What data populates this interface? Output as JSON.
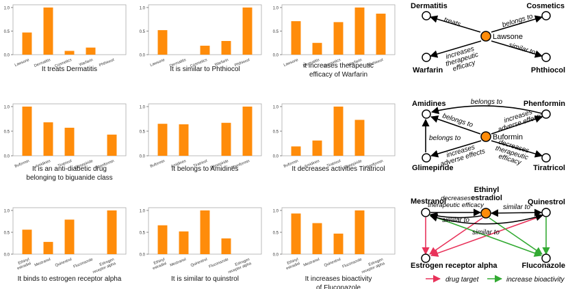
{
  "colors": {
    "bar": "#ff8c0a",
    "node_center": "#ff8c0a",
    "node": "#ffffff",
    "drug_target": "#e8325a",
    "increase_bioactivity": "#33aa33",
    "edge": "#000000",
    "axis": "#666666"
  },
  "chart_data": [
    {
      "type": "bar",
      "title": "It treats Dermatitis",
      "categories": [
        "Lawsone",
        "Dermatitis",
        "Cosmetics",
        "Warfarin",
        "Phthiocol"
      ],
      "values": [
        0.47,
        1.0,
        0.08,
        0.15,
        0.0
      ],
      "yticks": [
        "0.0",
        "0.5",
        "1.0"
      ],
      "ylim": [
        0,
        1.0
      ],
      "xlabel": "",
      "ylabel": ""
    },
    {
      "type": "bar",
      "title": "It is similar to Phthiocol",
      "categories": [
        "Lawsone",
        "Dermatitis",
        "Cosmetics",
        "Warfarin",
        "Phthiocol"
      ],
      "values": [
        0.52,
        0.0,
        0.19,
        0.29,
        1.0
      ],
      "yticks": [
        "0.0",
        "0.5",
        "1.0"
      ],
      "ylim": [
        0,
        1.0
      ],
      "xlabel": "",
      "ylabel": ""
    },
    {
      "type": "bar",
      "title": "it increases therapeutic efficacy of Warfarin",
      "categories": [
        "Lawsone",
        "Dermatitis",
        "Cosmetics",
        "Warfarin",
        "Phthiocol"
      ],
      "values": [
        0.71,
        0.25,
        0.69,
        1.0,
        0.87
      ],
      "yticks": [
        "0.0",
        "0.5",
        "1.0"
      ],
      "ylim": [
        0,
        1.0
      ],
      "xlabel": "",
      "ylabel": ""
    },
    {
      "type": "bar",
      "title": "It is an anti-diabetic drug belonging to biguanide class",
      "categories": [
        "Buformin",
        "Amidines",
        "Tiratricol",
        "Glimepiride",
        "Phenformin"
      ],
      "values": [
        1.0,
        0.68,
        0.57,
        0.0,
        0.43
      ],
      "yticks": [
        "0.0",
        "0.5",
        "1.0"
      ],
      "ylim": [
        0,
        1.0
      ],
      "xlabel": "",
      "ylabel": ""
    },
    {
      "type": "bar",
      "title": "It belongs to Amidines",
      "categories": [
        "Buformin",
        "Amidines",
        "Tiratricol",
        "Glimepiride",
        "Phenformin"
      ],
      "values": [
        0.65,
        0.64,
        0.0,
        0.67,
        1.0
      ],
      "yticks": [
        "0.0",
        "0.5",
        "1.0"
      ],
      "ylim": [
        0,
        1.0
      ],
      "xlabel": "",
      "ylabel": ""
    },
    {
      "type": "bar",
      "title": "It decreases activities Tiratricol",
      "categories": [
        "Buformin",
        "Amidines",
        "Tiratricol",
        "Glimepiride",
        "Phenformin"
      ],
      "values": [
        0.19,
        0.31,
        1.0,
        0.73,
        0.0
      ],
      "yticks": [
        "0.0",
        "0.5",
        "1.0"
      ],
      "ylim": [
        0,
        1.0
      ],
      "xlabel": "",
      "ylabel": ""
    },
    {
      "type": "bar",
      "title": "It binds to estrogen receptor alpha",
      "categories": [
        "Ethinyl\nestradiol",
        "Mestranol",
        "Quinestrol",
        "Fluconazole",
        "Estrogen\nreceptor alpha"
      ],
      "values": [
        0.56,
        0.28,
        0.79,
        0.0,
        1.0
      ],
      "yticks": [
        "0.0",
        "0.5",
        "1.0"
      ],
      "ylim": [
        0,
        1.0
      ],
      "xlabel": "",
      "ylabel": ""
    },
    {
      "type": "bar",
      "title": "It is similar to quinstrol",
      "categories": [
        "Ethinyl\nestradiol",
        "Mestranol",
        "Quinestrol",
        "Fluconazole",
        "Estrogen\nreceptor alpha"
      ],
      "values": [
        0.66,
        0.52,
        1.0,
        0.36,
        0.0
      ],
      "yticks": [
        "0.0",
        "0.5",
        "1.0"
      ],
      "ylim": [
        0,
        1.0
      ],
      "xlabel": "",
      "ylabel": ""
    },
    {
      "type": "bar",
      "title": "It increases bioactivity of Fluconazole",
      "categories": [
        "Ethinyl\nestradiol",
        "Mestranol",
        "Quinestrol",
        "Fluconazole",
        "Estrogen\nreceptor alpha"
      ],
      "values": [
        0.93,
        0.71,
        0.47,
        1.0,
        0.0
      ],
      "yticks": [
        "0.0",
        "0.5",
        "1.0"
      ],
      "ylim": [
        0,
        1.0
      ],
      "xlabel": "",
      "ylabel": ""
    }
  ],
  "graphs": [
    {
      "nodes": [
        {
          "id": "Lawsone",
          "label": "Lawsone",
          "center": true
        },
        {
          "id": "Dermatitis",
          "label": "Dermatitis"
        },
        {
          "id": "Cosmetics",
          "label": "Cosmetics"
        },
        {
          "id": "Warfarin",
          "label": "Warfarin"
        },
        {
          "id": "Phthiocol",
          "label": "Phthiocol"
        }
      ],
      "edges": [
        {
          "from": "Lawsone",
          "to": "Dermatitis",
          "label": "treats"
        },
        {
          "from": "Lawsone",
          "to": "Cosmetics",
          "label": "belongs to"
        },
        {
          "from": "Lawsone",
          "to": "Warfarin",
          "label": "increases\ntherapeutic\nefficacy"
        },
        {
          "from": "Lawsone",
          "to": "Phthiocol",
          "label": "similar to"
        }
      ]
    },
    {
      "nodes": [
        {
          "id": "Buformin",
          "label": "Buformin",
          "center": true
        },
        {
          "id": "Amidines",
          "label": "Amidines"
        },
        {
          "id": "Phenformin",
          "label": "Phenformin"
        },
        {
          "id": "Glimepiride",
          "label": "Glimepiride"
        },
        {
          "id": "Tiratricol",
          "label": "Tiratricol"
        }
      ],
      "edges": [
        {
          "from": "Phenformin",
          "to": "Amidines",
          "label": "belongs to"
        },
        {
          "from": "Buformin",
          "to": "Amidines",
          "label": "belongs to"
        },
        {
          "from": "Buformin",
          "to": "Phenformin",
          "label": "increases\nadverse effects"
        },
        {
          "from": "Glimepiride",
          "to": "Amidines",
          "label": "belongs to"
        },
        {
          "from": "Buformin",
          "to": "Glimepiride",
          "label": "increases\nadverse effects"
        },
        {
          "from": "Buformin",
          "to": "Tiratricol",
          "label": "decreases\ntherapeutic\nefficacy"
        }
      ]
    },
    {
      "nodes": [
        {
          "id": "Mestranol",
          "label": "Mestranol"
        },
        {
          "id": "Ethinyl estradiol",
          "label": "Ethinyl\nestradiol",
          "center": true
        },
        {
          "id": "Quinestrol",
          "label": "Quinestrol"
        },
        {
          "id": "Estrogen receptor alpha",
          "label": "Estrogen receptor alpha"
        },
        {
          "id": "Fluconazole",
          "label": "Fluconazole"
        }
      ],
      "edges": [
        {
          "from": "Mestranol",
          "to": "Ethinyl estradiol",
          "label": "decreases\ntherapeutic efficacy",
          "type": "plain"
        },
        {
          "from": "Ethinyl estradiol",
          "to": "Quinestrol",
          "label": "similar to",
          "type": "plain"
        },
        {
          "from": "Ethinyl estradiol",
          "to": "Mestranol",
          "label": "similar to",
          "type": "plain"
        },
        {
          "from": "Quinestrol",
          "to": "Mestranol",
          "label": "similar to",
          "type": "plain"
        },
        {
          "from": "Mestranol",
          "to": "Estrogen receptor alpha",
          "label": "",
          "type": "drug_target"
        },
        {
          "from": "Ethinyl estradiol",
          "to": "Estrogen receptor alpha",
          "label": "",
          "type": "drug_target"
        },
        {
          "from": "Quinestrol",
          "to": "Estrogen receptor alpha",
          "label": "",
          "type": "drug_target"
        },
        {
          "from": "Mestranol",
          "to": "Fluconazole",
          "label": "",
          "type": "increase_bioactivity"
        },
        {
          "from": "Ethinyl estradiol",
          "to": "Fluconazole",
          "label": "",
          "type": "increase_bioactivity"
        },
        {
          "from": "Quinestrol",
          "to": "Fluconazole",
          "label": "",
          "type": "increase_bioactivity"
        }
      ],
      "legend": [
        {
          "type": "drug_target",
          "label": "drug target"
        },
        {
          "type": "increase_bioactivity",
          "label": "increase bioactivity"
        }
      ]
    }
  ]
}
